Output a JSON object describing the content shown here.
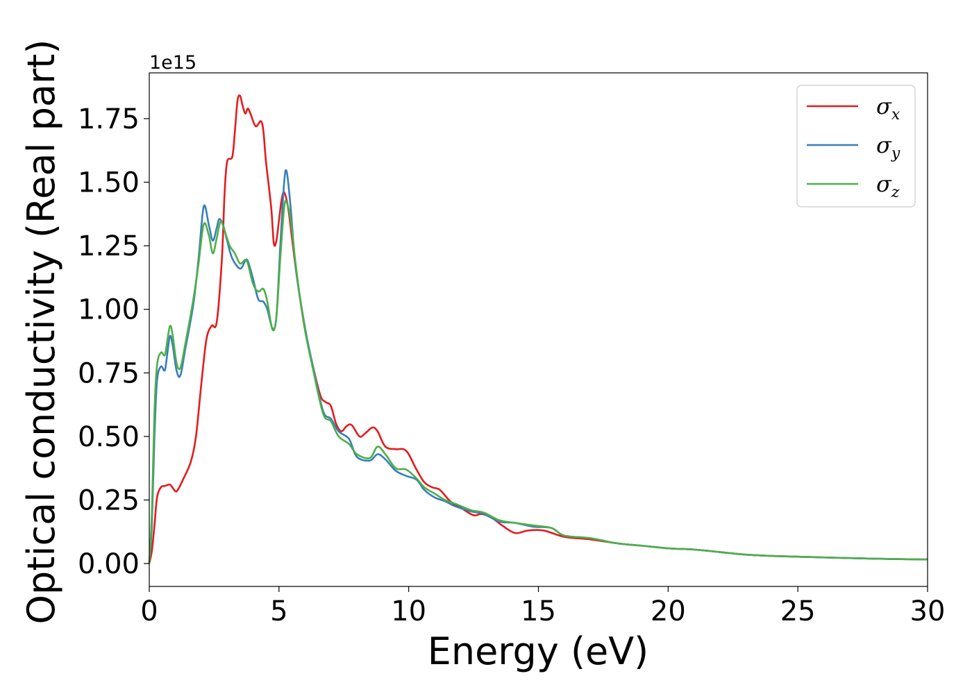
{
  "chart_data": {
    "type": "line",
    "title": "",
    "xlabel": "Energy (eV)",
    "ylabel": "Optical conductivity (Real part)",
    "y_offset_label": "1e15",
    "y_multiplier": 1000000000000000.0,
    "xlim": [
      0,
      30
    ],
    "ylim": [
      -0.09,
      1.93
    ],
    "x_ticks": [
      0,
      5,
      10,
      15,
      20,
      25,
      30
    ],
    "x_tick_labels": [
      "0",
      "5",
      "10",
      "15",
      "20",
      "25",
      "30"
    ],
    "y_ticks": [
      0.0,
      0.25,
      0.5,
      0.75,
      1.0,
      1.25,
      1.5,
      1.75
    ],
    "y_tick_labels": [
      "0.00",
      "0.25",
      "0.50",
      "0.75",
      "1.00",
      "1.25",
      "1.50",
      "1.75"
    ],
    "grid": false,
    "legend_position": "top-right",
    "series": [
      {
        "name": "σx",
        "symbol": "σ",
        "subscript": "x",
        "color": "#e41a1c",
        "points": [
          [
            0,
            0
          ],
          [
            0.1,
            0.05
          ],
          [
            0.2,
            0.15
          ],
          [
            0.3,
            0.26
          ],
          [
            0.45,
            0.3
          ],
          [
            0.6,
            0.305
          ],
          [
            0.8,
            0.31
          ],
          [
            1.0,
            0.285
          ],
          [
            1.1,
            0.29
          ],
          [
            1.3,
            0.33
          ],
          [
            1.6,
            0.4
          ],
          [
            1.8,
            0.5
          ],
          [
            2.0,
            0.7
          ],
          [
            2.2,
            0.88
          ],
          [
            2.4,
            0.935
          ],
          [
            2.6,
            0.95
          ],
          [
            2.8,
            1.2
          ],
          [
            2.9,
            1.45
          ],
          [
            3.0,
            1.58
          ],
          [
            3.2,
            1.6
          ],
          [
            3.3,
            1.7
          ],
          [
            3.4,
            1.82
          ],
          [
            3.5,
            1.84
          ],
          [
            3.6,
            1.8
          ],
          [
            3.7,
            1.77
          ],
          [
            3.8,
            1.79
          ],
          [
            3.9,
            1.77
          ],
          [
            4.1,
            1.72
          ],
          [
            4.3,
            1.74
          ],
          [
            4.4,
            1.7
          ],
          [
            4.5,
            1.58
          ],
          [
            4.7,
            1.4
          ],
          [
            4.8,
            1.26
          ],
          [
            4.9,
            1.27
          ],
          [
            5.0,
            1.35
          ],
          [
            5.1,
            1.43
          ],
          [
            5.2,
            1.46
          ],
          [
            5.35,
            1.4
          ],
          [
            5.5,
            1.28
          ],
          [
            5.7,
            1.12
          ],
          [
            6.0,
            0.92
          ],
          [
            6.3,
            0.78
          ],
          [
            6.6,
            0.66
          ],
          [
            6.8,
            0.635
          ],
          [
            7.0,
            0.62
          ],
          [
            7.2,
            0.55
          ],
          [
            7.4,
            0.52
          ],
          [
            7.6,
            0.54
          ],
          [
            7.8,
            0.545
          ],
          [
            8.1,
            0.5
          ],
          [
            8.3,
            0.51
          ],
          [
            8.6,
            0.535
          ],
          [
            8.8,
            0.52
          ],
          [
            9.1,
            0.46
          ],
          [
            9.5,
            0.45
          ],
          [
            9.8,
            0.45
          ],
          [
            10.0,
            0.43
          ],
          [
            10.3,
            0.37
          ],
          [
            10.6,
            0.32
          ],
          [
            10.9,
            0.3
          ],
          [
            11.2,
            0.29
          ],
          [
            11.6,
            0.245
          ],
          [
            12.0,
            0.22
          ],
          [
            12.5,
            0.19
          ],
          [
            12.8,
            0.195
          ],
          [
            13.2,
            0.18
          ],
          [
            13.6,
            0.15
          ],
          [
            14.1,
            0.12
          ],
          [
            14.6,
            0.13
          ],
          [
            15.2,
            0.13
          ],
          [
            16,
            0.105
          ],
          [
            17,
            0.095
          ],
          [
            18,
            0.08
          ],
          [
            19,
            0.07
          ],
          [
            20,
            0.06
          ],
          [
            21,
            0.055
          ],
          [
            22,
            0.045
          ],
          [
            23,
            0.035
          ],
          [
            24,
            0.03
          ],
          [
            25,
            0.027
          ],
          [
            26,
            0.024
          ],
          [
            28,
            0.019
          ],
          [
            30,
            0.016
          ]
        ]
      },
      {
        "name": "σy",
        "symbol": "σ",
        "subscript": "y",
        "color": "#377eb8",
        "points": [
          [
            0,
            0
          ],
          [
            0.1,
            0.15
          ],
          [
            0.2,
            0.5
          ],
          [
            0.3,
            0.72
          ],
          [
            0.45,
            0.775
          ],
          [
            0.6,
            0.76
          ],
          [
            0.7,
            0.83
          ],
          [
            0.8,
            0.895
          ],
          [
            0.9,
            0.86
          ],
          [
            1.05,
            0.76
          ],
          [
            1.2,
            0.74
          ],
          [
            1.4,
            0.85
          ],
          [
            1.7,
            1.02
          ],
          [
            1.9,
            1.2
          ],
          [
            2.1,
            1.405
          ],
          [
            2.3,
            1.33
          ],
          [
            2.45,
            1.27
          ],
          [
            2.6,
            1.32
          ],
          [
            2.7,
            1.355
          ],
          [
            2.85,
            1.33
          ],
          [
            3.0,
            1.27
          ],
          [
            3.2,
            1.2
          ],
          [
            3.5,
            1.16
          ],
          [
            3.7,
            1.19
          ],
          [
            3.8,
            1.19
          ],
          [
            4.0,
            1.12
          ],
          [
            4.2,
            1.04
          ],
          [
            4.4,
            1.03
          ],
          [
            4.55,
            1.0
          ],
          [
            4.75,
            0.925
          ],
          [
            4.9,
            0.97
          ],
          [
            5.05,
            1.25
          ],
          [
            5.2,
            1.5
          ],
          [
            5.3,
            1.54
          ],
          [
            5.45,
            1.4
          ],
          [
            5.65,
            1.16
          ],
          [
            6.0,
            0.93
          ],
          [
            6.3,
            0.78
          ],
          [
            6.7,
            0.6
          ],
          [
            7.0,
            0.57
          ],
          [
            7.3,
            0.52
          ],
          [
            7.7,
            0.49
          ],
          [
            8.0,
            0.42
          ],
          [
            8.5,
            0.405
          ],
          [
            8.8,
            0.43
          ],
          [
            9.1,
            0.41
          ],
          [
            9.5,
            0.365
          ],
          [
            9.9,
            0.345
          ],
          [
            10.3,
            0.33
          ],
          [
            10.6,
            0.29
          ],
          [
            11.0,
            0.26
          ],
          [
            11.4,
            0.245
          ],
          [
            11.8,
            0.225
          ],
          [
            12.4,
            0.205
          ],
          [
            12.9,
            0.195
          ],
          [
            13.5,
            0.165
          ],
          [
            14.1,
            0.16
          ],
          [
            14.8,
            0.145
          ],
          [
            15.5,
            0.14
          ],
          [
            16,
            0.11
          ],
          [
            17,
            0.1
          ],
          [
            18,
            0.08
          ],
          [
            19,
            0.07
          ],
          [
            20,
            0.06
          ],
          [
            21,
            0.055
          ],
          [
            22,
            0.045
          ],
          [
            23,
            0.035
          ],
          [
            24,
            0.03
          ],
          [
            25,
            0.027
          ],
          [
            26,
            0.024
          ],
          [
            28,
            0.019
          ],
          [
            30,
            0.016
          ]
        ]
      },
      {
        "name": "σz",
        "symbol": "σ",
        "subscript": "z",
        "color": "#4daf4a",
        "points": [
          [
            0,
            0
          ],
          [
            0.1,
            0.2
          ],
          [
            0.2,
            0.6
          ],
          [
            0.3,
            0.78
          ],
          [
            0.45,
            0.83
          ],
          [
            0.6,
            0.82
          ],
          [
            0.7,
            0.88
          ],
          [
            0.8,
            0.935
          ],
          [
            0.9,
            0.9
          ],
          [
            1.05,
            0.79
          ],
          [
            1.2,
            0.77
          ],
          [
            1.4,
            0.87
          ],
          [
            1.7,
            1.04
          ],
          [
            1.9,
            1.18
          ],
          [
            2.1,
            1.335
          ],
          [
            2.3,
            1.29
          ],
          [
            2.45,
            1.22
          ],
          [
            2.6,
            1.28
          ],
          [
            2.75,
            1.345
          ],
          [
            2.9,
            1.31
          ],
          [
            3.1,
            1.25
          ],
          [
            3.3,
            1.22
          ],
          [
            3.5,
            1.18
          ],
          [
            3.7,
            1.195
          ],
          [
            3.8,
            1.18
          ],
          [
            4.0,
            1.1
          ],
          [
            4.2,
            1.07
          ],
          [
            4.4,
            1.08
          ],
          [
            4.55,
            1.03
          ],
          [
            4.75,
            0.92
          ],
          [
            4.9,
            0.97
          ],
          [
            5.05,
            1.2
          ],
          [
            5.2,
            1.4
          ],
          [
            5.3,
            1.42
          ],
          [
            5.45,
            1.35
          ],
          [
            5.7,
            1.13
          ],
          [
            6.0,
            0.92
          ],
          [
            6.3,
            0.77
          ],
          [
            6.7,
            0.59
          ],
          [
            7.0,
            0.56
          ],
          [
            7.3,
            0.5
          ],
          [
            7.7,
            0.47
          ],
          [
            8.0,
            0.43
          ],
          [
            8.5,
            0.415
          ],
          [
            8.8,
            0.46
          ],
          [
            9.1,
            0.43
          ],
          [
            9.5,
            0.375
          ],
          [
            9.9,
            0.37
          ],
          [
            10.3,
            0.335
          ],
          [
            10.6,
            0.3
          ],
          [
            11.0,
            0.275
          ],
          [
            11.4,
            0.25
          ],
          [
            11.8,
            0.235
          ],
          [
            12.4,
            0.21
          ],
          [
            12.9,
            0.2
          ],
          [
            13.5,
            0.17
          ],
          [
            14.1,
            0.16
          ],
          [
            14.8,
            0.15
          ],
          [
            15.5,
            0.14
          ],
          [
            16,
            0.11
          ],
          [
            17,
            0.1
          ],
          [
            18,
            0.08
          ],
          [
            19,
            0.07
          ],
          [
            20,
            0.06
          ],
          [
            21,
            0.055
          ],
          [
            22,
            0.045
          ],
          [
            23,
            0.035
          ],
          [
            24,
            0.03
          ],
          [
            25,
            0.027
          ],
          [
            26,
            0.024
          ],
          [
            28,
            0.019
          ],
          [
            30,
            0.016
          ]
        ]
      }
    ]
  }
}
